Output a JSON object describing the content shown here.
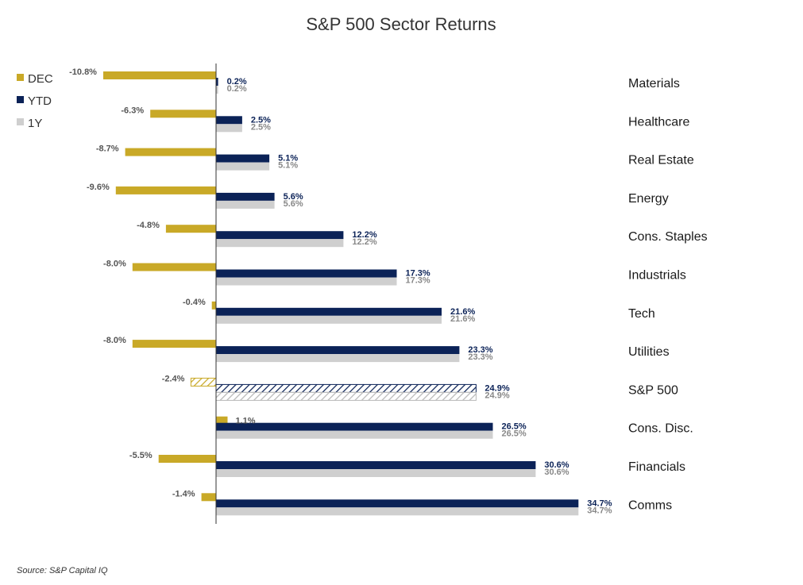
{
  "chart_data": {
    "type": "bar",
    "orientation": "horizontal",
    "title": "S&P 500 Sector Returns",
    "source": "Source: S&P Capital IQ",
    "categories": [
      "Materials",
      "Healthcare",
      "Real Estate",
      "Energy",
      "Cons. Staples",
      "Industrials",
      "Tech",
      "Utilities",
      "S&P 500",
      "Cons. Disc.",
      "Financials",
      "Comms"
    ],
    "highlight_category": "S&P 500",
    "series": [
      {
        "name": "DEC",
        "color": "#C9A927",
        "values": [
          -10.8,
          -6.3,
          -8.7,
          -9.6,
          -4.8,
          -8.0,
          -0.4,
          -8.0,
          -2.4,
          1.1,
          -5.5,
          -1.4
        ]
      },
      {
        "name": "YTD",
        "color": "#0B2257",
        "values": [
          0.2,
          2.5,
          5.1,
          5.6,
          12.2,
          17.3,
          21.6,
          23.3,
          24.9,
          26.5,
          30.6,
          34.7
        ]
      },
      {
        "name": "1Y",
        "color": "#CFCFCF",
        "values": [
          0.2,
          2.5,
          5.1,
          5.6,
          12.2,
          17.3,
          21.6,
          23.3,
          24.9,
          26.5,
          30.6,
          34.7
        ]
      }
    ],
    "value_suffix": "%",
    "xlim": [
      -10.8,
      34.7
    ],
    "legend_position": "top-left",
    "grid": false
  }
}
